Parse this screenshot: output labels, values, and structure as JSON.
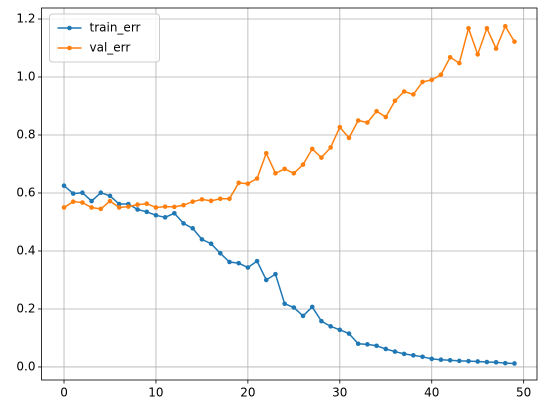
{
  "chart_data": {
    "type": "line",
    "x": [
      0,
      1,
      2,
      3,
      4,
      5,
      6,
      7,
      8,
      9,
      10,
      11,
      12,
      13,
      14,
      15,
      16,
      17,
      18,
      19,
      20,
      21,
      22,
      23,
      24,
      25,
      26,
      27,
      28,
      29,
      30,
      31,
      32,
      33,
      34,
      35,
      36,
      37,
      38,
      39,
      40,
      41,
      42,
      43,
      44,
      45,
      46,
      47,
      48,
      49
    ],
    "series": [
      {
        "name": "train_err",
        "color": "#1f77b4",
        "values": [
          0.625,
          0.598,
          0.601,
          0.572,
          0.601,
          0.59,
          0.562,
          0.562,
          0.543,
          0.535,
          0.523,
          0.516,
          0.53,
          0.495,
          0.478,
          0.44,
          0.425,
          0.392,
          0.362,
          0.358,
          0.343,
          0.365,
          0.3,
          0.32,
          0.218,
          0.205,
          0.176,
          0.207,
          0.158,
          0.14,
          0.128,
          0.115,
          0.08,
          0.078,
          0.073,
          0.062,
          0.053,
          0.045,
          0.04,
          0.035,
          0.028,
          0.025,
          0.023,
          0.021,
          0.02,
          0.019,
          0.017,
          0.016,
          0.013,
          0.012
        ]
      },
      {
        "name": "val_err",
        "color": "#ff7f0e",
        "values": [
          0.55,
          0.57,
          0.567,
          0.55,
          0.545,
          0.572,
          0.55,
          0.553,
          0.56,
          0.563,
          0.55,
          0.553,
          0.552,
          0.558,
          0.57,
          0.578,
          0.573,
          0.58,
          0.58,
          0.635,
          0.632,
          0.65,
          0.737,
          0.668,
          0.683,
          0.668,
          0.698,
          0.752,
          0.722,
          0.757,
          0.827,
          0.79,
          0.85,
          0.843,
          0.882,
          0.862,
          0.918,
          0.95,
          0.94,
          0.983,
          0.99,
          1.008,
          1.068,
          1.048,
          1.168,
          1.078,
          1.168,
          1.098,
          1.175,
          1.122
        ]
      }
    ],
    "xlim": [
      -2.45,
      51.45
    ],
    "xticks": [
      0,
      10,
      20,
      30,
      40,
      50
    ],
    "ylim": [
      -0.045,
      1.238
    ],
    "yticks": [
      {
        "value": 0,
        "label": "0.0"
      },
      0.2,
      0.4,
      0.6,
      0.8,
      {
        "value": 1,
        "label": "1.0"
      },
      1.2
    ],
    "grid": true,
    "legend": "upper left"
  }
}
